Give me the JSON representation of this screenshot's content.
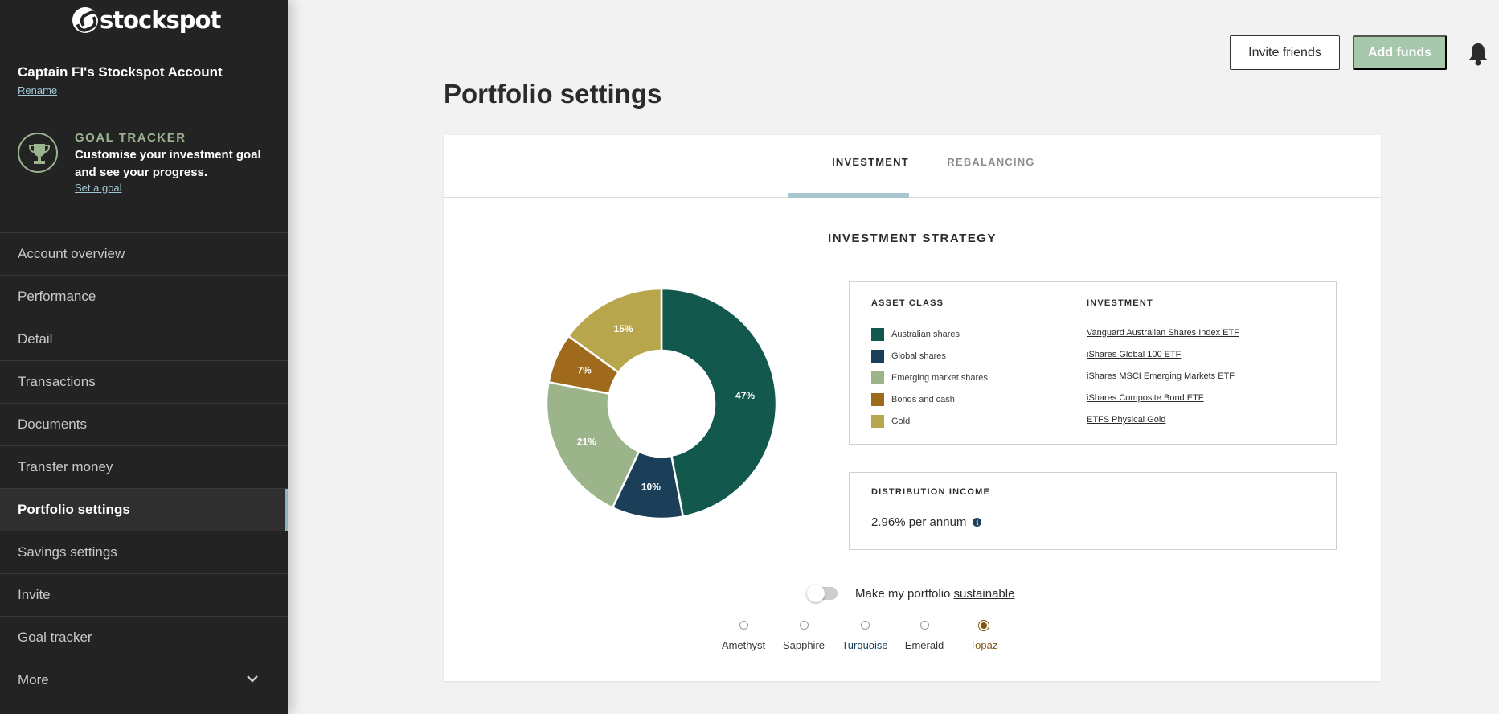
{
  "brand": {
    "logo_text": "stockspot"
  },
  "account": {
    "name": "Captain FI's Stockspot Account",
    "rename_label": "Rename"
  },
  "goal": {
    "title": "GOAL TRACKER",
    "text": "Customise your investment goal and see your progress.",
    "link": "Set a goal"
  },
  "nav": {
    "items": [
      {
        "label": "Account overview"
      },
      {
        "label": "Performance"
      },
      {
        "label": "Detail"
      },
      {
        "label": "Transactions"
      },
      {
        "label": "Documents"
      },
      {
        "label": "Transfer money"
      },
      {
        "label": "Portfolio settings",
        "active": true
      },
      {
        "label": "Savings settings"
      },
      {
        "label": "Invite"
      },
      {
        "label": "Goal tracker"
      },
      {
        "label": "More"
      }
    ]
  },
  "header": {
    "invite_label": "Invite friends",
    "add_funds_label": "Add funds"
  },
  "page": {
    "title": "Portfolio settings"
  },
  "tabs": [
    {
      "label": "INVESTMENT",
      "active": true
    },
    {
      "label": "REBALANCING",
      "active": false
    }
  ],
  "strategy": {
    "title": "INVESTMENT STRATEGY",
    "asset_class_header": "ASSET CLASS",
    "investment_header": "INVESTMENT",
    "assets": [
      {
        "name": "Australian shares",
        "investment": "Vanguard Australian Shares Index ETF",
        "percent": 47,
        "label": "47%",
        "color": "#13584d"
      },
      {
        "name": "Global shares",
        "investment": "iShares Global 100 ETF",
        "percent": 10,
        "label": "10%",
        "color": "#1b3f58"
      },
      {
        "name": "Emerging market shares",
        "investment": "iShares MSCI Emerging Markets ETF",
        "percent": 21,
        "label": "21%",
        "color": "#9bb48a"
      },
      {
        "name": "Bonds and cash",
        "investment": "iShares Composite Bond ETF",
        "percent": 7,
        "label": "7%",
        "color": "#a06a1c"
      },
      {
        "name": "Gold",
        "investment": "ETFS Physical Gold",
        "percent": 15,
        "label": "15%",
        "color": "#b8a64d"
      }
    ]
  },
  "distribution": {
    "title": "DISTRIBUTION INCOME",
    "value": "2.96% per annum"
  },
  "sustainable": {
    "text": "Make my portfolio ",
    "link": "sustainable",
    "enabled": false
  },
  "portfolio_options": [
    {
      "label": "Amethyst",
      "color": "#3a3a3a",
      "selected": false
    },
    {
      "label": "Sapphire",
      "color": "#3a3a3a",
      "selected": false
    },
    {
      "label": "Turquoise",
      "color": "#1b3f58",
      "selected": false
    },
    {
      "label": "Emerald",
      "color": "#3a3a3a",
      "selected": false
    },
    {
      "label": "Topaz",
      "color": "#7a5a12",
      "selected": true
    }
  ]
}
